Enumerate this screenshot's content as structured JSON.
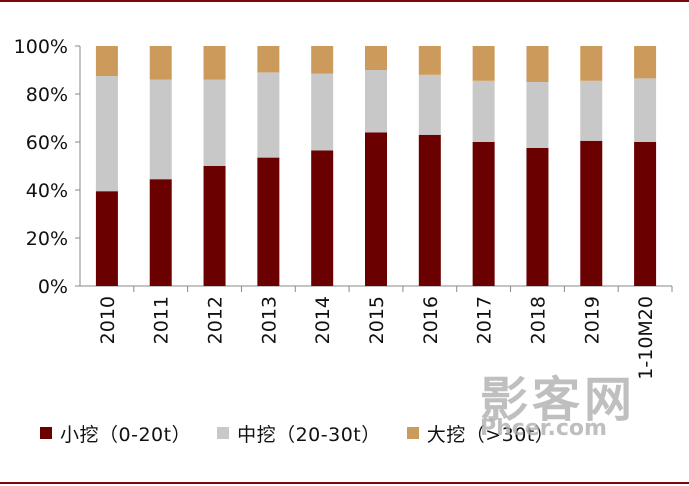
{
  "chart_data": {
    "type": "bar",
    "stacked": true,
    "percent": true,
    "categories": [
      "2010",
      "2011",
      "2012",
      "2013",
      "2014",
      "2015",
      "2016",
      "2017",
      "2018",
      "2019",
      "1-10M20"
    ],
    "series": [
      {
        "name": "小挖（0-20t）",
        "color": "#6b0000",
        "values": [
          39.5,
          44.5,
          50.0,
          53.5,
          56.5,
          64.0,
          63.0,
          60.0,
          57.5,
          60.5,
          60.0
        ]
      },
      {
        "name": "中挖（20-30t）",
        "color": "#c8c8c8",
        "values": [
          48.0,
          41.5,
          36.0,
          35.5,
          32.0,
          26.0,
          25.0,
          25.5,
          27.5,
          25.0,
          26.5
        ]
      },
      {
        "name": "大挖（>30t）",
        "color": "#cc9a5a",
        "values": [
          12.5,
          14.0,
          14.0,
          11.0,
          11.5,
          10.0,
          12.0,
          14.5,
          15.0,
          14.5,
          13.5
        ]
      }
    ],
    "yticks": [
      "0%",
      "20%",
      "40%",
      "60%",
      "80%",
      "100%"
    ],
    "ylim": [
      0,
      100
    ],
    "legend_position": "bottom"
  },
  "legend": [
    {
      "label": "小挖（0-20t）",
      "color": "#6b0000"
    },
    {
      "label": "中挖（20-30t）",
      "color": "#c8c8c8"
    },
    {
      "label": "大挖（>30t）",
      "color": "#cc9a5a"
    }
  ],
  "watermark": {
    "cn": "影客网",
    "en": "Phcer.com"
  }
}
